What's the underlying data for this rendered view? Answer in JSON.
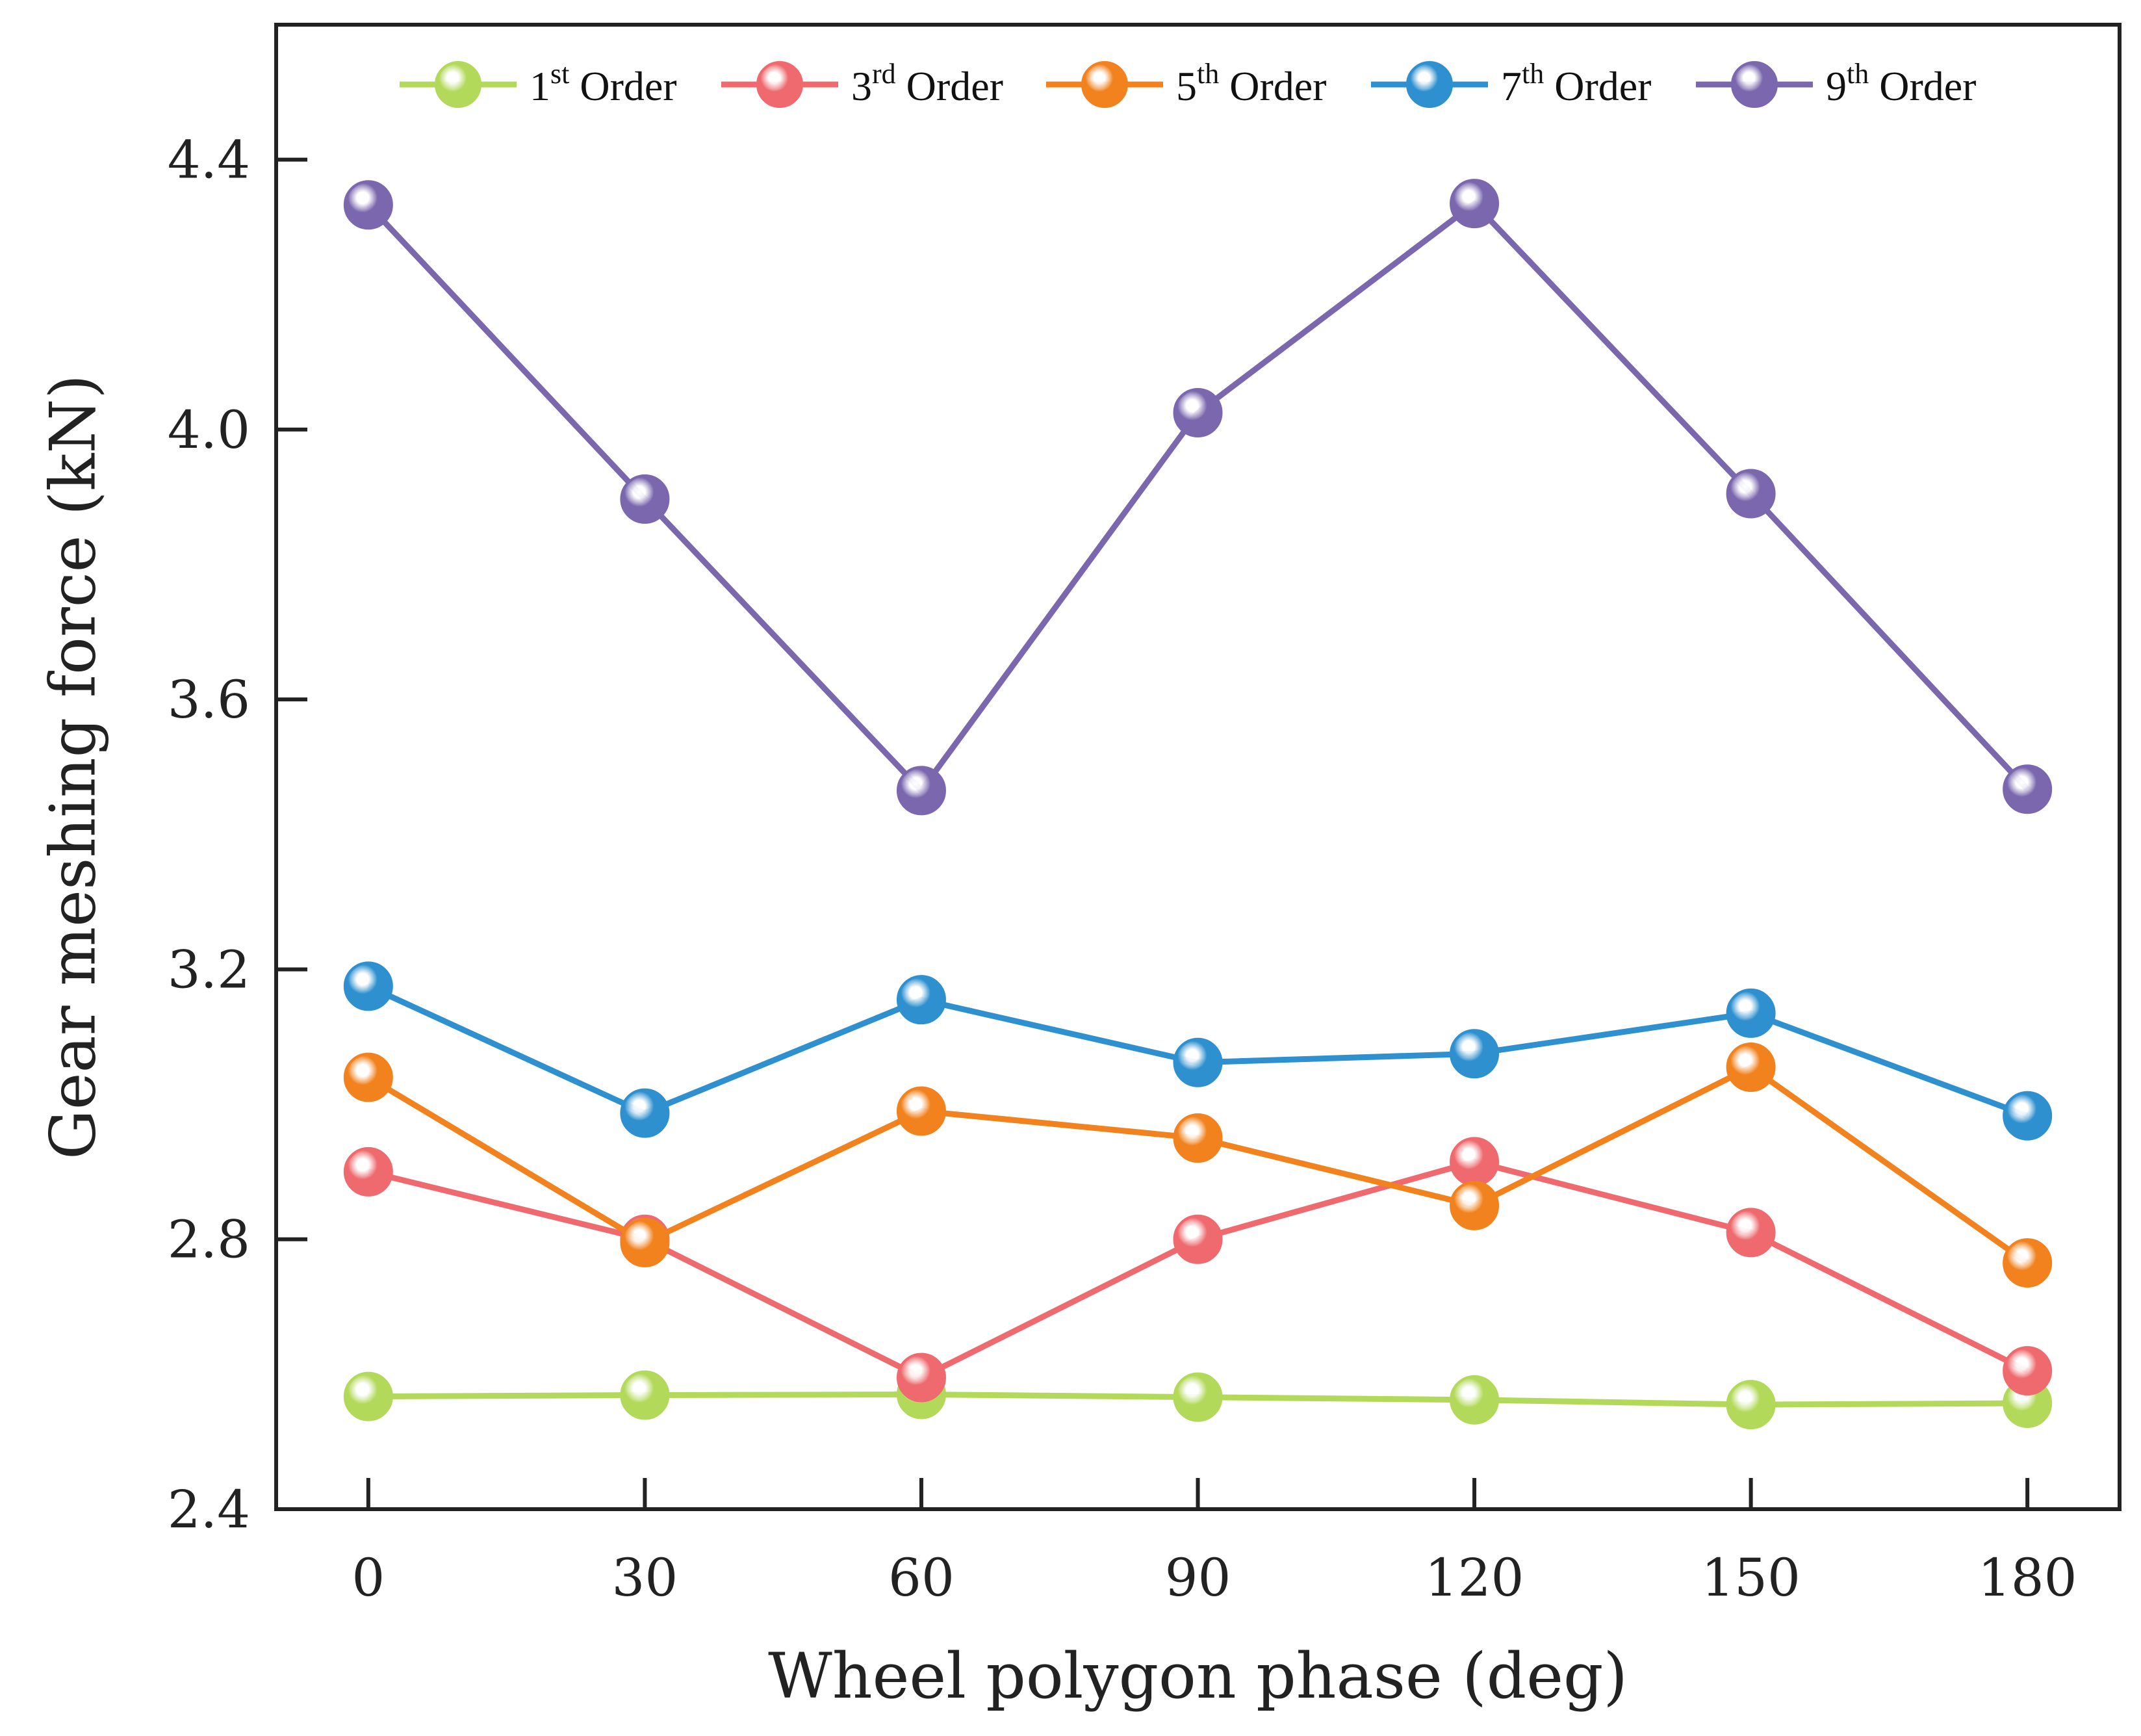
{
  "chart_data": {
    "type": "line",
    "xlabel": "Wheel polygon phase (deg)",
    "ylabel": "Gear meshing force (kN)",
    "x": [
      0,
      30,
      60,
      90,
      120,
      150,
      180
    ],
    "xlim": [
      -10,
      190
    ],
    "ylim": [
      2.4,
      4.6
    ],
    "xticks": [
      "0",
      "30",
      "60",
      "90",
      "120",
      "150",
      "180"
    ],
    "yticks": [
      "2.4",
      "2.8",
      "3.2",
      "3.6",
      "4.0",
      "4.4"
    ],
    "legend_position": "top",
    "series": [
      {
        "name": "1st Order",
        "base": "1",
        "sup": "st",
        "suffix": " Order",
        "color": "#b3d95b",
        "values": [
          2.567,
          2.569,
          2.57,
          2.566,
          2.562,
          2.555,
          2.557
        ]
      },
      {
        "name": "3rd Order",
        "base": "3",
        "sup": "rd",
        "suffix": " Order",
        "color": "#ee6a6e",
        "values": [
          2.9,
          2.8,
          2.595,
          2.8,
          2.915,
          2.81,
          2.605
        ]
      },
      {
        "name": "5th Order",
        "base": "5",
        "sup": "th",
        "suffix": " Order",
        "color": "#f1821e",
        "values": [
          3.04,
          2.795,
          2.99,
          2.95,
          2.85,
          3.055,
          2.765
        ]
      },
      {
        "name": "7th Order",
        "base": "7",
        "sup": "th",
        "suffix": " Order",
        "color": "#2e90cf",
        "values": [
          3.175,
          2.987,
          3.155,
          3.062,
          3.075,
          3.135,
          2.983
        ]
      },
      {
        "name": "9th Order",
        "base": "9",
        "sup": "th",
        "suffix": " Order",
        "color": "#7b67ae",
        "values": [
          4.333,
          3.897,
          3.465,
          4.025,
          4.335,
          3.905,
          3.467
        ]
      }
    ]
  }
}
